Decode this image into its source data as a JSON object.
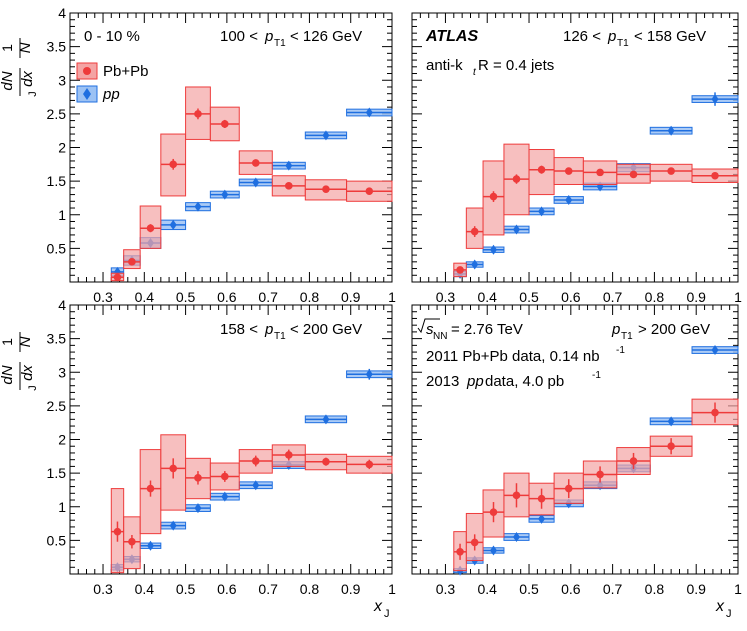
{
  "figure": {
    "xlabel": "x",
    "xlabel_sub": "J",
    "ylabel_parts": {
      "one": "1",
      "N": "N",
      "dN": "dN",
      "dx": "dx",
      "sub": "J"
    },
    "legend": {
      "pbpb": "Pb+Pb",
      "pp": "pp"
    },
    "tags": {
      "centrality": "0 - 10 %",
      "atlas": "ATLAS",
      "jets_prefix": "anti-k",
      "jets_sub": "t",
      "jets_suffix": " R = 0.4 jets",
      "energy": "= 2.76 TeV",
      "energy_sub": "NN",
      "energy_s": "s",
      "lumi_pbpb": "2011 Pb+Pb data, 0.14 nb",
      "lumi_pbpb_sup": "-1",
      "lumi_pp_prefix": "2013 ",
      "lumi_pp_pp": "pp",
      "lumi_pp": " data, 4.0 pb",
      "lumi_pp_sup": "-1"
    },
    "colors": {
      "pbpb": "#ee3b3b",
      "pbpb_fill": "#f4a4a4",
      "pp": "#1f6fe0",
      "pp_fill": "#9cc2f4"
    }
  },
  "chart_data": [
    {
      "type": "scatter",
      "panel": "top-left",
      "title": "100 < p_T1 < 126 GeV",
      "range_pre": "100 <",
      "range_post": "< 126 GeV",
      "xlim": [
        0.22,
        1.0
      ],
      "ylim": [
        0,
        4
      ],
      "xticks": [
        "0.3",
        "0.4",
        "0.5",
        "0.6",
        "0.7",
        "0.8",
        "0.9",
        "1"
      ],
      "yticks": [
        "0.5",
        "1",
        "1.5",
        "2",
        "2.5",
        "3",
        "3.5",
        "4"
      ],
      "series": [
        {
          "name": "Pb+Pb",
          "bins": [
            [
              0.32,
              0.35
            ],
            [
              0.35,
              0.39
            ],
            [
              0.39,
              0.44
            ],
            [
              0.44,
              0.5
            ],
            [
              0.5,
              0.56
            ],
            [
              0.56,
              0.63
            ],
            [
              0.63,
              0.71
            ],
            [
              0.71,
              0.79
            ],
            [
              0.79,
              0.89
            ],
            [
              0.89,
              1.0
            ]
          ],
          "x": [
            0.335,
            0.37,
            0.415,
            0.47,
            0.53,
            0.595,
            0.67,
            0.75,
            0.84,
            0.945
          ],
          "y": [
            0.07,
            0.3,
            0.8,
            1.75,
            2.5,
            2.35,
            1.77,
            1.43,
            1.38,
            1.35
          ],
          "sys_lo": [
            0.02,
            0.2,
            0.5,
            1.28,
            2.12,
            2.1,
            1.6,
            1.28,
            1.22,
            1.2
          ],
          "sys_hi": [
            0.13,
            0.48,
            1.13,
            2.2,
            2.9,
            2.6,
            1.95,
            1.58,
            1.52,
            1.5
          ],
          "stat": [
            0.03,
            0.05,
            0.06,
            0.08,
            0.08,
            0.06,
            0.05,
            0.05,
            0.05,
            0.05
          ]
        },
        {
          "name": "pp",
          "bins": [
            [
              0.32,
              0.35
            ],
            [
              0.35,
              0.39
            ],
            [
              0.39,
              0.44
            ],
            [
              0.44,
              0.5
            ],
            [
              0.5,
              0.56
            ],
            [
              0.56,
              0.63
            ],
            [
              0.63,
              0.71
            ],
            [
              0.71,
              0.79
            ],
            [
              0.79,
              0.89
            ],
            [
              0.89,
              1.0
            ]
          ],
          "x": [
            0.335,
            0.37,
            0.415,
            0.47,
            0.53,
            0.595,
            0.67,
            0.75,
            0.84,
            0.945
          ],
          "y": [
            0.15,
            0.32,
            0.58,
            0.85,
            1.12,
            1.3,
            1.48,
            1.73,
            2.18,
            2.52
          ],
          "sys_lo": [
            0.09,
            0.25,
            0.5,
            0.78,
            1.06,
            1.25,
            1.43,
            1.68,
            2.13,
            2.47
          ],
          "sys_hi": [
            0.21,
            0.39,
            0.66,
            0.92,
            1.18,
            1.35,
            1.53,
            1.78,
            2.23,
            2.57
          ],
          "stat": [
            0.04,
            0.04,
            0.04,
            0.04,
            0.04,
            0.04,
            0.04,
            0.04,
            0.05,
            0.05
          ]
        }
      ]
    },
    {
      "type": "scatter",
      "panel": "top-right",
      "title": "126 < p_T1 < 158 GeV",
      "range_pre": "126 <",
      "range_post": "< 158 GeV",
      "xlim": [
        0.22,
        1.0
      ],
      "ylim": [
        0,
        4
      ],
      "xticks": [
        "0.3",
        "0.4",
        "0.5",
        "0.6",
        "0.7",
        "0.8",
        "0.9",
        "1"
      ],
      "yticks": [],
      "series": [
        {
          "name": "Pb+Pb",
          "bins": [
            [
              0.32,
              0.35
            ],
            [
              0.35,
              0.39
            ],
            [
              0.39,
              0.44
            ],
            [
              0.44,
              0.5
            ],
            [
              0.5,
              0.56
            ],
            [
              0.56,
              0.63
            ],
            [
              0.63,
              0.71
            ],
            [
              0.71,
              0.79
            ],
            [
              0.79,
              0.89
            ],
            [
              0.89,
              1.0
            ]
          ],
          "x": [
            0.335,
            0.37,
            0.415,
            0.47,
            0.53,
            0.595,
            0.67,
            0.75,
            0.84,
            0.945
          ],
          "y": [
            0.18,
            0.75,
            1.27,
            1.53,
            1.67,
            1.65,
            1.63,
            1.6,
            1.65,
            1.58
          ],
          "sys_lo": [
            0.08,
            0.5,
            0.7,
            1.0,
            1.3,
            1.45,
            1.45,
            1.47,
            1.5,
            1.48
          ],
          "sys_hi": [
            0.28,
            1.1,
            1.8,
            2.05,
            1.97,
            1.85,
            1.8,
            1.75,
            1.75,
            1.68
          ],
          "stat": [
            0.05,
            0.08,
            0.08,
            0.07,
            0.06,
            0.05,
            0.05,
            0.05,
            0.05,
            0.05
          ]
        },
        {
          "name": "pp",
          "bins": [
            [
              0.32,
              0.35
            ],
            [
              0.35,
              0.39
            ],
            [
              0.39,
              0.44
            ],
            [
              0.44,
              0.5
            ],
            [
              0.5,
              0.56
            ],
            [
              0.56,
              0.63
            ],
            [
              0.63,
              0.71
            ],
            [
              0.71,
              0.79
            ],
            [
              0.79,
              0.89
            ],
            [
              0.89,
              1.0
            ]
          ],
          "x": [
            0.335,
            0.37,
            0.415,
            0.47,
            0.53,
            0.595,
            0.67,
            0.75,
            0.84,
            0.945
          ],
          "y": [
            0.12,
            0.26,
            0.48,
            0.78,
            1.05,
            1.22,
            1.42,
            1.7,
            2.25,
            2.72
          ],
          "sys_lo": [
            0.08,
            0.22,
            0.44,
            0.73,
            1.0,
            1.17,
            1.37,
            1.64,
            2.2,
            2.67
          ],
          "sys_hi": [
            0.16,
            0.3,
            0.52,
            0.83,
            1.1,
            1.27,
            1.47,
            1.76,
            2.3,
            2.77
          ],
          "stat": [
            0.03,
            0.03,
            0.04,
            0.04,
            0.04,
            0.04,
            0.05,
            0.05,
            0.06,
            0.1
          ]
        }
      ]
    },
    {
      "type": "scatter",
      "panel": "bottom-left",
      "title": "158 < p_T1 < 200 GeV",
      "range_pre": "158 <",
      "range_post": "< 200 GeV",
      "xlim": [
        0.22,
        1.0
      ],
      "ylim": [
        0,
        4
      ],
      "xticks": [
        "0.3",
        "0.4",
        "0.5",
        "0.6",
        "0.7",
        "0.8",
        "0.9",
        "1"
      ],
      "yticks": [
        "0.5",
        "1",
        "1.5",
        "2",
        "2.5",
        "3",
        "3.5",
        "4"
      ],
      "series": [
        {
          "name": "Pb+Pb",
          "bins": [
            [
              0.32,
              0.35
            ],
            [
              0.35,
              0.39
            ],
            [
              0.39,
              0.44
            ],
            [
              0.44,
              0.5
            ],
            [
              0.5,
              0.56
            ],
            [
              0.56,
              0.63
            ],
            [
              0.63,
              0.71
            ],
            [
              0.71,
              0.79
            ],
            [
              0.79,
              0.89
            ],
            [
              0.89,
              1.0
            ]
          ],
          "x": [
            0.335,
            0.37,
            0.415,
            0.47,
            0.53,
            0.595,
            0.67,
            0.75,
            0.84,
            0.945
          ],
          "y": [
            0.63,
            0.48,
            1.27,
            1.57,
            1.43,
            1.45,
            1.68,
            1.77,
            1.67,
            1.63
          ],
          "sys_lo": [
            0.02,
            0.08,
            0.6,
            0.95,
            1.12,
            1.25,
            1.5,
            1.6,
            1.55,
            1.5
          ],
          "sys_hi": [
            1.27,
            0.85,
            1.85,
            2.07,
            1.72,
            1.65,
            1.85,
            1.92,
            1.78,
            1.75
          ],
          "stat": [
            0.15,
            0.1,
            0.12,
            0.15,
            0.1,
            0.08,
            0.08,
            0.08,
            0.06,
            0.07
          ]
        },
        {
          "name": "pp",
          "bins": [
            [
              0.32,
              0.35
            ],
            [
              0.35,
              0.39
            ],
            [
              0.39,
              0.44
            ],
            [
              0.44,
              0.5
            ],
            [
              0.5,
              0.56
            ],
            [
              0.56,
              0.63
            ],
            [
              0.63,
              0.71
            ],
            [
              0.71,
              0.79
            ],
            [
              0.79,
              0.89
            ],
            [
              0.89,
              1.0
            ]
          ],
          "x": [
            0.335,
            0.37,
            0.415,
            0.47,
            0.53,
            0.595,
            0.67,
            0.75,
            0.84,
            0.945
          ],
          "y": [
            0.1,
            0.22,
            0.42,
            0.72,
            0.98,
            1.15,
            1.32,
            1.62,
            2.3,
            2.97
          ],
          "sys_lo": [
            0.06,
            0.18,
            0.38,
            0.67,
            0.93,
            1.1,
            1.27,
            1.57,
            2.25,
            2.92
          ],
          "sys_hi": [
            0.14,
            0.26,
            0.46,
            0.77,
            1.03,
            1.2,
            1.37,
            1.67,
            2.35,
            3.02
          ],
          "stat": [
            0.03,
            0.03,
            0.04,
            0.04,
            0.04,
            0.04,
            0.05,
            0.05,
            0.06,
            0.08
          ]
        }
      ]
    },
    {
      "type": "scatter",
      "panel": "bottom-right",
      "title": "p_T1 > 200 GeV",
      "range_pre": "",
      "range_post": "> 200 GeV",
      "xlim": [
        0.22,
        1.0
      ],
      "ylim": [
        0,
        4
      ],
      "xticks": [
        "0.3",
        "0.4",
        "0.5",
        "0.6",
        "0.7",
        "0.8",
        "0.9",
        "1"
      ],
      "yticks": [],
      "series": [
        {
          "name": "Pb+Pb",
          "bins": [
            [
              0.32,
              0.35
            ],
            [
              0.35,
              0.39
            ],
            [
              0.39,
              0.44
            ],
            [
              0.44,
              0.5
            ],
            [
              0.5,
              0.56
            ],
            [
              0.56,
              0.63
            ],
            [
              0.63,
              0.71
            ],
            [
              0.71,
              0.79
            ],
            [
              0.79,
              0.89
            ],
            [
              0.89,
              1.0
            ]
          ],
          "x": [
            0.335,
            0.37,
            0.415,
            0.47,
            0.53,
            0.595,
            0.67,
            0.75,
            0.84,
            0.945
          ],
          "y": [
            0.33,
            0.47,
            0.92,
            1.17,
            1.12,
            1.27,
            1.48,
            1.68,
            1.9,
            2.4
          ],
          "sys_lo": [
            0.05,
            0.2,
            0.55,
            0.85,
            0.88,
            1.05,
            1.28,
            1.48,
            1.75,
            2.22
          ],
          "sys_hi": [
            0.63,
            0.9,
            1.25,
            1.5,
            1.35,
            1.5,
            1.68,
            1.88,
            2.05,
            2.6
          ],
          "stat": [
            0.12,
            0.12,
            0.15,
            0.18,
            0.15,
            0.14,
            0.12,
            0.12,
            0.12,
            0.15
          ]
        },
        {
          "name": "pp",
          "bins": [
            [
              0.32,
              0.35
            ],
            [
              0.35,
              0.39
            ],
            [
              0.39,
              0.44
            ],
            [
              0.44,
              0.5
            ],
            [
              0.5,
              0.56
            ],
            [
              0.56,
              0.63
            ],
            [
              0.63,
              0.71
            ],
            [
              0.71,
              0.79
            ],
            [
              0.79,
              0.89
            ],
            [
              0.89,
              1.0
            ]
          ],
          "x": [
            0.335,
            0.37,
            0.415,
            0.47,
            0.53,
            0.595,
            0.67,
            0.75,
            0.84,
            0.945
          ],
          "y": [
            0.05,
            0.2,
            0.35,
            0.55,
            0.82,
            1.05,
            1.32,
            1.57,
            2.27,
            3.33
          ],
          "sys_lo": [
            0.02,
            0.16,
            0.31,
            0.5,
            0.77,
            1.0,
            1.27,
            1.52,
            2.22,
            3.28
          ],
          "sys_hi": [
            0.08,
            0.24,
            0.39,
            0.6,
            0.87,
            1.1,
            1.37,
            1.62,
            2.32,
            3.38
          ],
          "stat": [
            0.02,
            0.03,
            0.03,
            0.04,
            0.04,
            0.04,
            0.05,
            0.06,
            0.06,
            0.06
          ]
        }
      ]
    }
  ]
}
